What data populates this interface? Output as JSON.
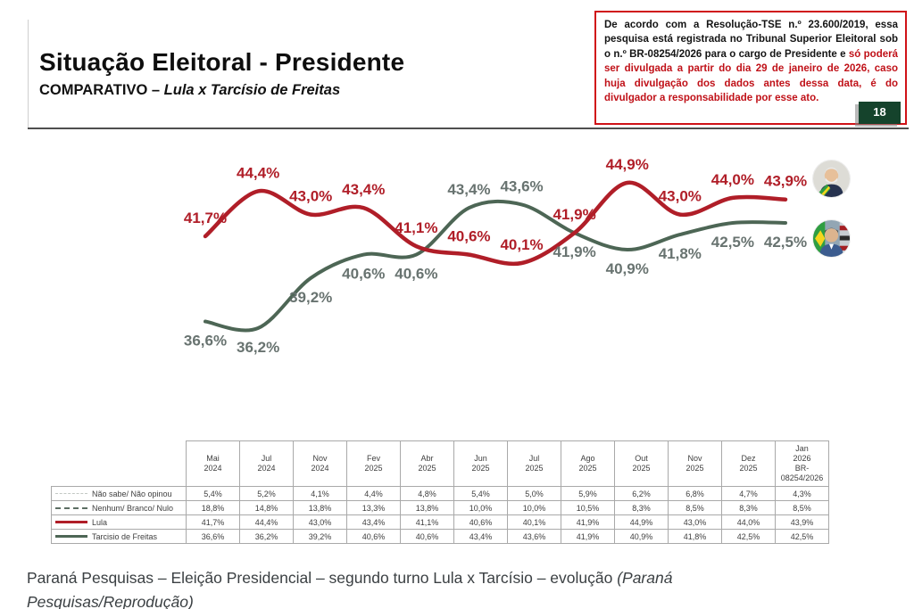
{
  "header": {
    "title": "Situação Eleitoral - Presidente",
    "subtitle_prefix": "COMPARATIVO – ",
    "subtitle_italic": "Lula x Tarcísio de Freitas"
  },
  "disclaimer": {
    "black_text": "De acordo com a Resolução-TSE n.º 23.600/2019, essa pesquisa está registrada no Tribunal Superior Eleitoral sob o n.º BR-08254/2026 para o cargo de Presidente e ",
    "red_text": "só poderá ser divulgada a partir do dia 29 de janeiro de 2026, caso huja divulgação dos dados antes dessa data, é do divulgador a responsabilidade por esse ato.",
    "page_number": "18",
    "border_color": "#d01217"
  },
  "chart_data": {
    "type": "line",
    "title": "",
    "xlabel": "",
    "ylabel": "",
    "grid": false,
    "legend_position": "table-left-column",
    "ylim": [
      35,
      46
    ],
    "categories": [
      "Mai 2024",
      "Jul 2024",
      "Nov 2024",
      "Fev 2025",
      "Abr 2025",
      "Jun 2025",
      "Jul 2025",
      "Ago 2025",
      "Out 2025",
      "Nov 2025",
      "Dez 2025",
      "Jan 2026"
    ],
    "series": [
      {
        "name": "Lula",
        "color": "#b01e28",
        "label_color": "#b01e28",
        "stroke_width": 4.5,
        "values": [
          41.7,
          44.4,
          43.0,
          43.4,
          41.1,
          40.6,
          40.1,
          41.9,
          44.9,
          43.0,
          44.0,
          43.9
        ],
        "labels": [
          "41,7%",
          "44,4%",
          "43,0%",
          "43,4%",
          "41,1%",
          "40,6%",
          "40,1%",
          "41,9%",
          "44,9%",
          "43,0%",
          "44,0%",
          "43,9%"
        ],
        "label_positions": [
          "above",
          "above",
          "above",
          "above",
          "above",
          "above",
          "above",
          "above",
          "above",
          "above",
          "above",
          "above"
        ]
      },
      {
        "name": "Tarcisio de Freitas",
        "color": "#4d6655",
        "label_color": "#687370",
        "stroke_width": 4,
        "values": [
          36.6,
          36.2,
          39.2,
          40.6,
          40.6,
          43.4,
          43.6,
          41.9,
          40.9,
          41.8,
          42.5,
          42.5
        ],
        "labels": [
          "36,6%",
          "36,2%",
          "39,2%",
          "40,6%",
          "40,6%",
          "43,4%",
          "43,6%",
          "41,9%",
          "40,9%",
          "41,8%",
          "42,5%",
          "42,5%"
        ],
        "label_positions": [
          "below",
          "below",
          "below",
          "below",
          "below",
          "above",
          "above",
          "below",
          "below",
          "below",
          "below",
          "below"
        ]
      }
    ]
  },
  "avatars": [
    {
      "name": "Lula"
    },
    {
      "name": "Tarcísio de Freitas"
    }
  ],
  "table": {
    "columns": [
      [
        "Mai",
        "2024"
      ],
      [
        "Jul",
        "2024"
      ],
      [
        "Nov",
        "2024"
      ],
      [
        "Fev",
        "2025"
      ],
      [
        "Abr",
        "2025"
      ],
      [
        "Jun",
        "2025"
      ],
      [
        "Jul",
        "2025"
      ],
      [
        "Ago",
        "2025"
      ],
      [
        "Out",
        "2025"
      ],
      [
        "Nov",
        "2025"
      ],
      [
        "Dez",
        "2025"
      ],
      [
        "Jan",
        "2026",
        "BR-",
        "08254/2026"
      ]
    ],
    "rows": [
      {
        "label": "Não sabe/ Não opinou",
        "swatch": {
          "kind": "dashed",
          "width": 1.5,
          "color": "#c3c8c4"
        },
        "values": [
          "5,4%",
          "5,2%",
          "4,1%",
          "4,4%",
          "4,8%",
          "5,4%",
          "5,0%",
          "5,9%",
          "6,2%",
          "6,8%",
          "4,7%",
          "4,3%"
        ]
      },
      {
        "label": "Nenhum/ Branco/ Nulo",
        "swatch": {
          "kind": "dashed",
          "width": 2,
          "color": "#5c6e63"
        },
        "values": [
          "18,8%",
          "14,8%",
          "13,8%",
          "13,3%",
          "13,8%",
          "10,0%",
          "10,0%",
          "10,5%",
          "8,3%",
          "8,5%",
          "8,3%",
          "8,5%"
        ]
      },
      {
        "label": "Lula",
        "swatch": {
          "kind": "solid",
          "width": 3.5,
          "color": "#b01e28"
        },
        "values": [
          "41,7%",
          "44,4%",
          "43,0%",
          "43,4%",
          "41,1%",
          "40,6%",
          "40,1%",
          "41,9%",
          "44,9%",
          "43,0%",
          "44,0%",
          "43,9%"
        ]
      },
      {
        "label": "Tarcisio de Freitas",
        "swatch": {
          "kind": "solid",
          "width": 3.5,
          "color": "#4d6655"
        },
        "values": [
          "36,6%",
          "36,2%",
          "39,2%",
          "40,6%",
          "40,6%",
          "43,4%",
          "43,6%",
          "41,9%",
          "40,9%",
          "41,8%",
          "42,5%",
          "42,5%"
        ]
      }
    ]
  },
  "caption": {
    "text": "Paraná Pesquisas – Eleição Presidencial – segundo turno Lula x Tarcísio – evolução ",
    "italic": "(Paraná Pesquisas/Reprodução)"
  }
}
